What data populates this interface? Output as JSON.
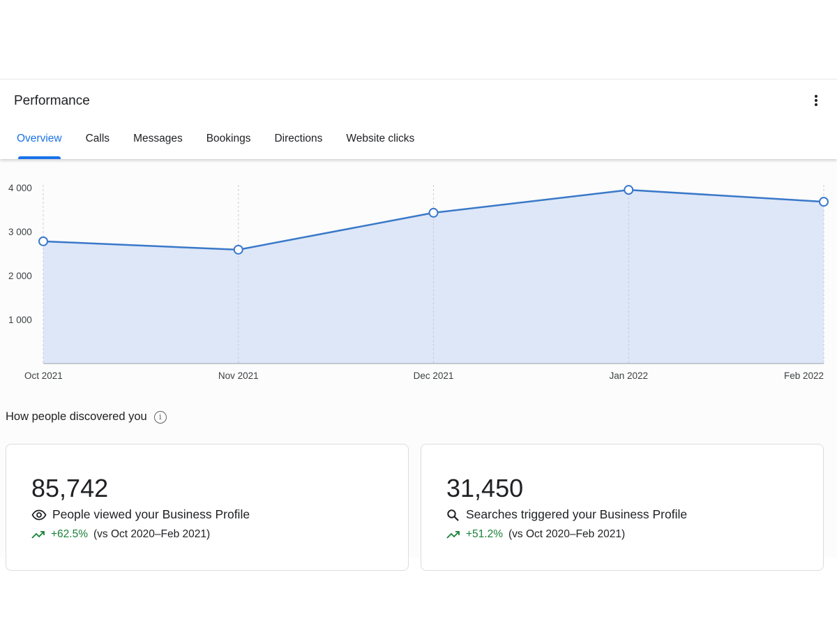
{
  "header": {
    "title": "Performance",
    "more_icon": "more-vert-icon"
  },
  "tabs": [
    {
      "label": "Overview",
      "active": true
    },
    {
      "label": "Calls"
    },
    {
      "label": "Messages"
    },
    {
      "label": "Bookings"
    },
    {
      "label": "Directions"
    },
    {
      "label": "Website clicks"
    }
  ],
  "chart_data": {
    "type": "area",
    "x": [
      "Oct 2021",
      "Nov 2021",
      "Dec 2021",
      "Jan 2022",
      "Feb 2022"
    ],
    "values": [
      2780,
      2590,
      3430,
      3950,
      3680
    ],
    "yticks": [
      1000,
      2000,
      3000,
      4000
    ],
    "ytick_labels": [
      "1 000",
      "2 000",
      "3 000",
      "4 000"
    ],
    "ylim": [
      0,
      4000
    ],
    "grid": "vertical dashed",
    "line_color": "#3a78c9",
    "fill_color": "#dde7f8"
  },
  "discovery": {
    "title": "How people discovered you",
    "cards": [
      {
        "value": "85,742",
        "label": "People viewed your Business Profile",
        "icon": "eye-icon",
        "change": "+62.5%",
        "comparison": "(vs Oct 2020–Feb 2021)"
      },
      {
        "value": "31,450",
        "label": "Searches triggered your Business Profile",
        "icon": "search-icon",
        "change": "+51.2%",
        "comparison": "(vs Oct 2020–Feb 2021)"
      }
    ]
  }
}
